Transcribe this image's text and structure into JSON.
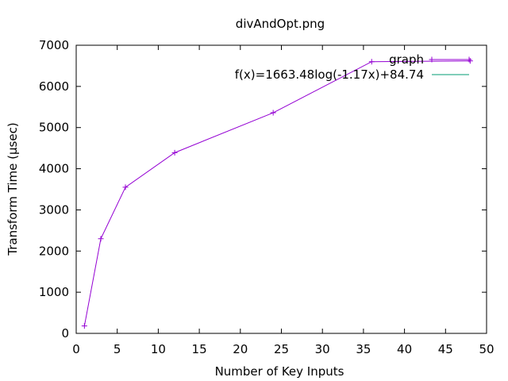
{
  "chart_data": {
    "type": "line",
    "title": "divAndOpt.png",
    "xlabel": "Number of Key Inputs",
    "ylabel": "Transform Time (µsec)",
    "xlim": [
      0,
      50
    ],
    "ylim": [
      0,
      7000
    ],
    "xticks": [
      0,
      5,
      10,
      15,
      20,
      25,
      30,
      35,
      40,
      45,
      50
    ],
    "yticks": [
      0,
      1000,
      2000,
      3000,
      4000,
      5000,
      6000,
      7000
    ],
    "grid": false,
    "legend_position": "top-right",
    "series": [
      {
        "name": "graph",
        "color": "#9400d3",
        "marker": "plus",
        "x": [
          1,
          3,
          6,
          12,
          24,
          36,
          48
        ],
        "y": [
          180,
          2300,
          3550,
          4390,
          5360,
          6600,
          6620
        ]
      },
      {
        "name": "f(x)=1663.48log(-1.17x)+84.74",
        "color": "#009e73",
        "marker": "none",
        "x": [],
        "y": []
      }
    ]
  }
}
